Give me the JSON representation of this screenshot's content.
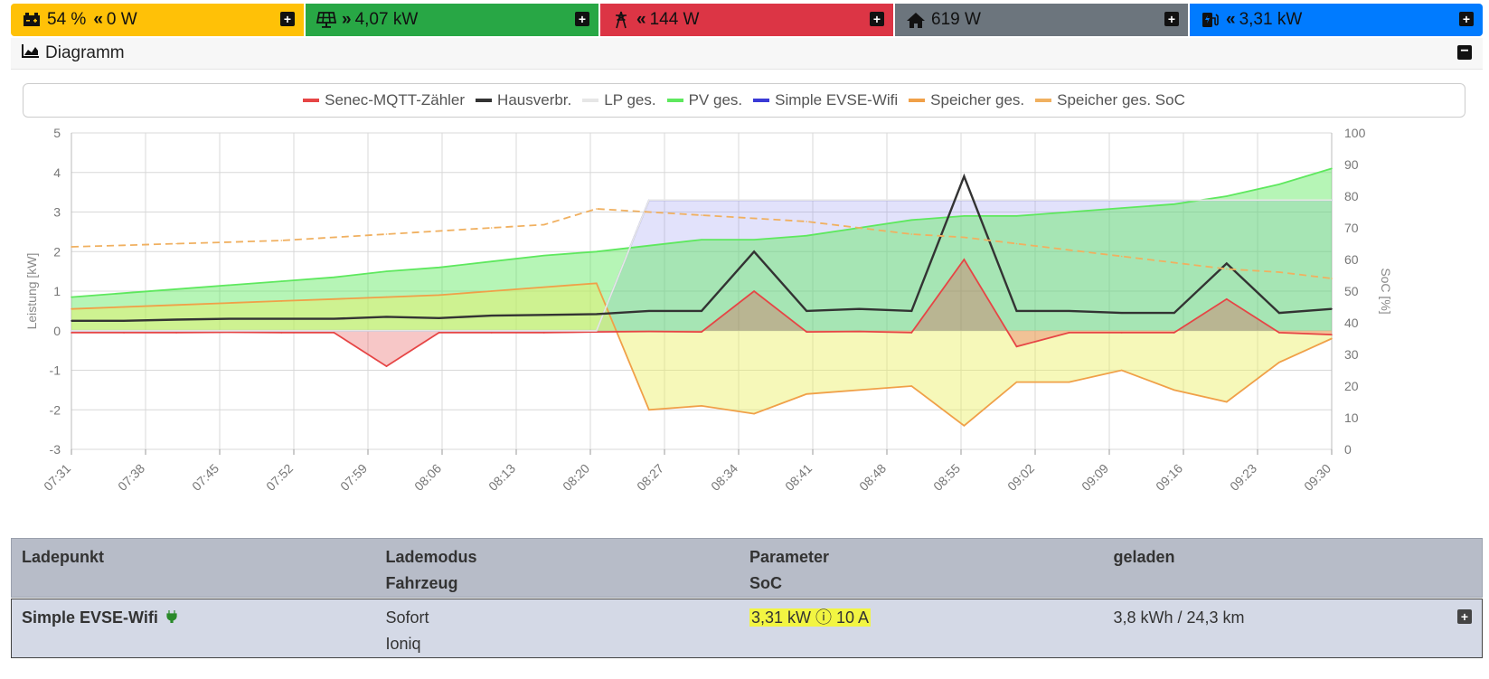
{
  "topbar": {
    "battery": {
      "soc": "54 %",
      "power": "0 W"
    },
    "pv": {
      "power": "4,07 kW"
    },
    "grid": {
      "power": "144 W"
    },
    "house": {
      "power": "619 W"
    },
    "ev": {
      "power": "3,31 kW"
    }
  },
  "diagram": {
    "title": "Diagramm"
  },
  "chart_data": {
    "type": "line",
    "xlabel": "",
    "ylabel": "Leistung [kW]",
    "y2label": "SoC [%]",
    "ylim": [
      -3,
      5
    ],
    "y2lim": [
      0,
      100
    ],
    "x_ticks": [
      "07:31",
      "07:38",
      "07:45",
      "07:52",
      "07:59",
      "08:06",
      "08:13",
      "08:20",
      "08:27",
      "08:34",
      "08:41",
      "08:48",
      "08:55",
      "09:02",
      "09:09",
      "09:16",
      "09:23",
      "09:30"
    ],
    "y_ticks": [
      5,
      4,
      3,
      2,
      1,
      0,
      -1,
      -2,
      -3
    ],
    "y2_ticks": [
      100,
      90,
      80,
      70,
      60,
      50,
      40,
      30,
      20,
      10,
      0
    ],
    "grid": true,
    "legend_position": "top",
    "x_minutes": [
      0,
      5,
      10,
      15,
      20,
      25,
      30,
      35,
      40,
      45,
      50,
      55,
      60,
      65,
      70,
      75,
      80,
      85,
      90,
      95,
      100,
      105,
      110,
      115,
      120
    ],
    "series": [
      {
        "name": "Senec-MQTT-Zähler",
        "color": "#e64545",
        "values": [
          -0.05,
          -0.05,
          -0.05,
          -0.04,
          -0.05,
          -0.05,
          -0.9,
          -0.05,
          -0.05,
          -0.05,
          -0.03,
          -0.02,
          -0.03,
          1.0,
          -0.03,
          -0.02,
          -0.05,
          1.8,
          -0.4,
          -0.05,
          -0.05,
          -0.05,
          0.8,
          -0.05,
          -0.1
        ]
      },
      {
        "name": "Hausverbr.",
        "color": "#333333",
        "values": [
          0.25,
          0.25,
          0.28,
          0.3,
          0.3,
          0.3,
          0.35,
          0.32,
          0.38,
          0.4,
          0.42,
          0.5,
          0.5,
          2.0,
          0.5,
          0.55,
          0.5,
          3.9,
          0.5,
          0.5,
          0.45,
          0.45,
          1.7,
          0.45,
          0.55
        ]
      },
      {
        "name": "LP ges.",
        "color": "#e6e6e6",
        "values": [
          0,
          0,
          0,
          0,
          0,
          0,
          0,
          0,
          0,
          0,
          0,
          3.3,
          3.3,
          3.3,
          3.3,
          3.3,
          3.3,
          3.3,
          3.3,
          3.3,
          3.3,
          3.3,
          3.3,
          3.3,
          3.3
        ]
      },
      {
        "name": "PV ges.",
        "color": "#5ee85e",
        "values": [
          0.85,
          0.95,
          1.05,
          1.15,
          1.25,
          1.35,
          1.5,
          1.6,
          1.75,
          1.9,
          2.0,
          2.15,
          2.3,
          2.3,
          2.4,
          2.6,
          2.8,
          2.9,
          2.9,
          3.0,
          3.1,
          3.2,
          3.4,
          3.7,
          4.1
        ]
      },
      {
        "name": "Simple EVSE-Wifi",
        "color": "#3a3ad6",
        "values": [
          0,
          0,
          0,
          0,
          0,
          0,
          0,
          0,
          0,
          0,
          0,
          3.3,
          3.3,
          3.3,
          3.3,
          3.3,
          3.3,
          3.3,
          3.3,
          3.3,
          3.3,
          3.3,
          3.3,
          3.3,
          3.3
        ]
      },
      {
        "name": "Speicher ges.",
        "color": "#f0a048",
        "values": [
          0.55,
          0.6,
          0.65,
          0.7,
          0.75,
          0.8,
          0.85,
          0.9,
          1.0,
          1.1,
          1.2,
          -2.0,
          -1.9,
          -2.1,
          -1.6,
          -1.5,
          -1.4,
          -2.4,
          -1.3,
          -1.3,
          -1.0,
          -1.5,
          -1.8,
          -0.8,
          -0.2
        ]
      },
      {
        "name": "Speicher ges. SoC",
        "color": "#f0b060",
        "axis": "right",
        "values": [
          64,
          64.5,
          65,
          65.5,
          66,
          67,
          68,
          69,
          70,
          71,
          76,
          75,
          74,
          73,
          72,
          70,
          68,
          67,
          65,
          63,
          61,
          59,
          57,
          56,
          54
        ]
      }
    ]
  },
  "table": {
    "headers": {
      "ladepunkt": "Ladepunkt",
      "lademodus": "Lademodus",
      "fahrzeug": "Fahrzeug",
      "parameter": "Parameter",
      "soc": "SoC",
      "geladen": "geladen"
    },
    "row": {
      "name": "Simple EVSE-Wifi",
      "mode": "Sofort",
      "vehicle": "Ioniq",
      "parameter": "3,31 kW ⓘ 10 A",
      "charged": "3,8 kWh / 24,3 km"
    }
  }
}
